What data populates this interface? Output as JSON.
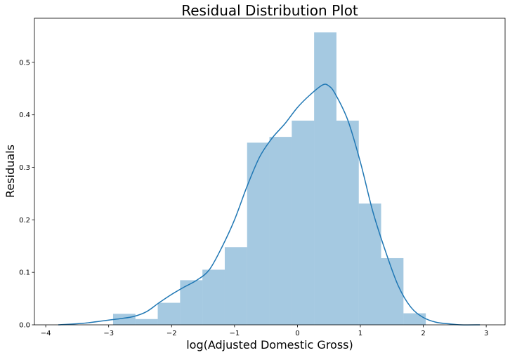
{
  "chart_data": {
    "type": "histogram",
    "title": "Residual Distribution Plot",
    "xlabel": "log(Adjusted Domestic Gross)",
    "ylabel": "Residuals",
    "xlim": [
      -4.18,
      3.3
    ],
    "ylim": [
      0,
      0.584
    ],
    "xticks": [
      -4,
      -3,
      -2,
      -1,
      0,
      1,
      2,
      3
    ],
    "yticks": [
      0.0,
      0.1,
      0.2,
      0.3,
      0.4,
      0.5
    ],
    "ytick_labels": [
      "0.0",
      "0.1",
      "0.2",
      "0.3",
      "0.4",
      "0.5"
    ],
    "grid": false,
    "color": "#1f77b4",
    "bins": {
      "edges": [
        -2.93,
        -2.575,
        -2.22,
        -1.865,
        -1.51,
        -1.155,
        -0.8,
        -0.445,
        -0.09,
        0.265,
        0.62,
        0.975,
        1.33,
        1.685,
        2.04
      ],
      "density": [
        0.021,
        0.011,
        0.042,
        0.085,
        0.105,
        0.148,
        0.347,
        0.358,
        0.389,
        0.557,
        0.389,
        0.231,
        0.127,
        0.022
      ]
    },
    "kde": {
      "x": [
        -3.8,
        -3.4,
        -3.0,
        -2.8,
        -2.6,
        -2.4,
        -2.2,
        -2.0,
        -1.8,
        -1.6,
        -1.4,
        -1.2,
        -1.0,
        -0.8,
        -0.6,
        -0.4,
        -0.2,
        0.0,
        0.2,
        0.4,
        0.5,
        0.6,
        0.8,
        1.0,
        1.2,
        1.4,
        1.6,
        1.8,
        2.0,
        2.2,
        2.4,
        2.6,
        2.9
      ],
      "y": [
        0.0,
        0.003,
        0.009,
        0.012,
        0.016,
        0.025,
        0.042,
        0.058,
        0.072,
        0.085,
        0.105,
        0.148,
        0.2,
        0.264,
        0.32,
        0.356,
        0.383,
        0.414,
        0.438,
        0.457,
        0.455,
        0.44,
        0.39,
        0.31,
        0.215,
        0.14,
        0.075,
        0.034,
        0.014,
        0.005,
        0.002,
        0.0,
        0.0
      ]
    }
  }
}
